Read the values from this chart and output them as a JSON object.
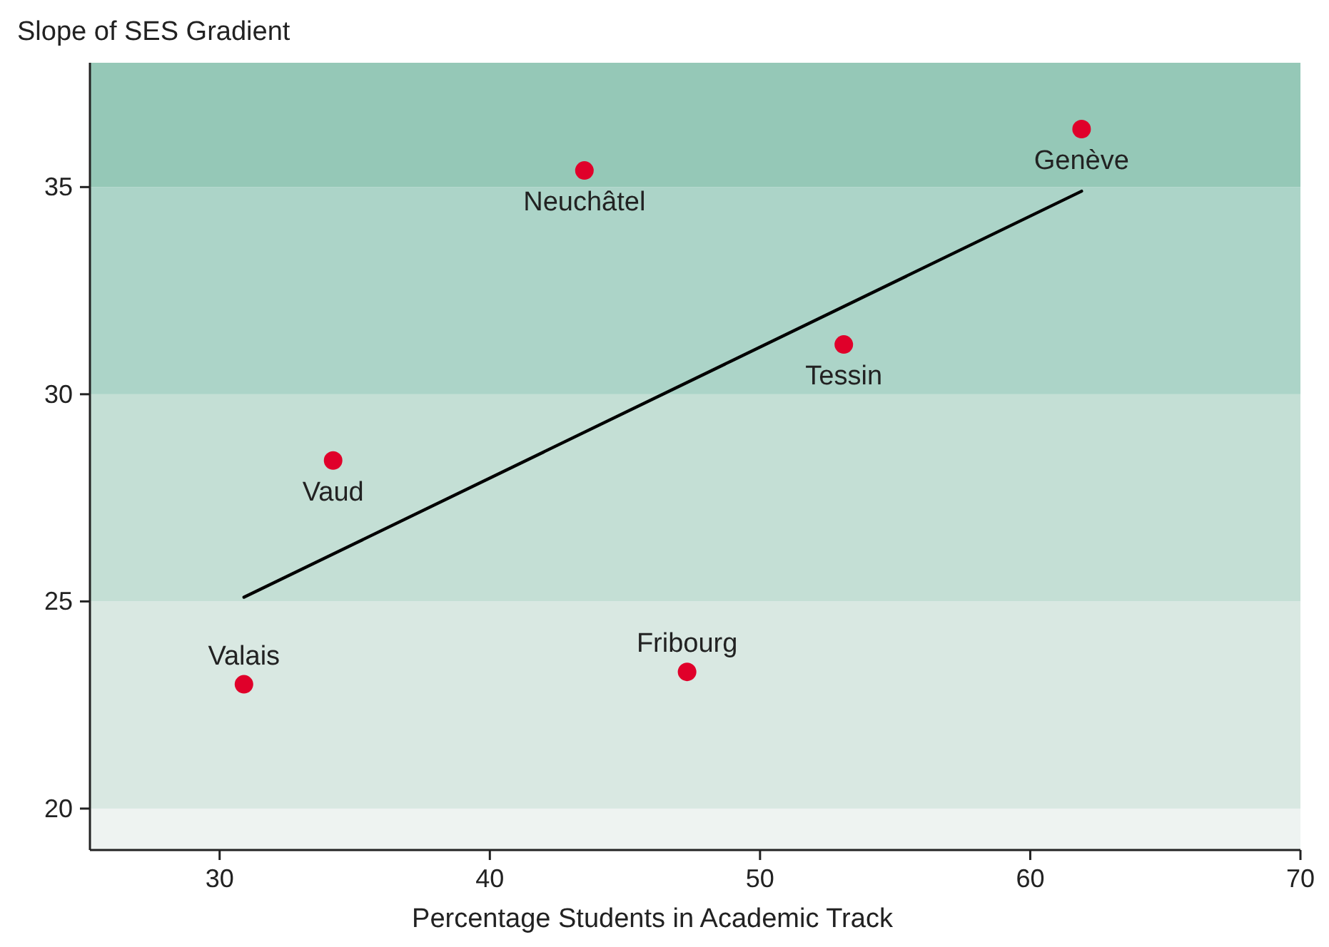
{
  "chart_data": {
    "type": "scatter",
    "xlabel": "Percentage Students in Academic Track",
    "ylabel": "Slope of SES Gradient",
    "xlim": [
      25.2,
      70
    ],
    "xticks": [
      30,
      40,
      50,
      60,
      70
    ],
    "ylim": [
      19,
      38
    ],
    "yticks": [
      20,
      25,
      30,
      35
    ],
    "grid": false,
    "series": [
      {
        "marker": "circle",
        "color": "#e0002a",
        "x": [
          61.9,
          43.5,
          53.1,
          34.2,
          47.3,
          30.9
        ],
        "values": [
          36.4,
          35.4,
          31.2,
          28.4,
          23.3,
          23.0
        ]
      },
      {
        "type": "line",
        "color": "#000000",
        "x": [
          30.9,
          61.9
        ],
        "values": [
          25.1,
          34.9
        ],
        "line_style": "solid"
      }
    ],
    "bands": [
      {
        "axis": "y",
        "from": 19,
        "to": 20,
        "color": "#eef3f1"
      },
      {
        "axis": "y",
        "from": 20,
        "to": 25,
        "color": "#d9e8e2"
      },
      {
        "axis": "y",
        "from": 25,
        "to": 30,
        "color": "#c4dfd5"
      },
      {
        "axis": "y",
        "from": 30,
        "to": 35,
        "color": "#acd4c8"
      },
      {
        "axis": "y",
        "from": 35,
        "to": 38,
        "color": "#95c8b7"
      }
    ],
    "annotations": [
      {
        "text": "Genève",
        "x": 61.9,
        "y": 36.4
      },
      {
        "text": "Neuchâtel",
        "x": 43.5,
        "y": 35.4
      },
      {
        "text": "Tessin",
        "x": 53.1,
        "y": 31.2
      },
      {
        "text": "Vaud",
        "x": 34.2,
        "y": 28.4
      },
      {
        "text": "Fribourg",
        "x": 47.3,
        "y": 23.3
      },
      {
        "text": "Valais",
        "x": 30.9,
        "y": 23.0
      }
    ]
  }
}
